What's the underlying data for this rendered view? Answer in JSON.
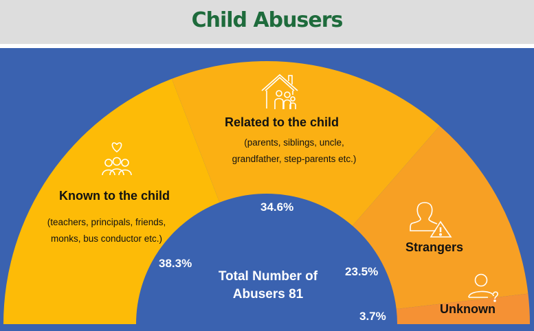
{
  "header": {
    "title": "Child Abusers"
  },
  "chart_data": {
    "type": "pie",
    "style": "half-donut",
    "categories": [
      "Known to the child",
      "Related to the child",
      "Strangers",
      "Unknown"
    ],
    "values": [
      38.3,
      34.6,
      23.5,
      3.7
    ],
    "labels": [
      "38.3%",
      "34.6%",
      "23.5%",
      "3.7%"
    ],
    "descriptions": [
      "(teachers, principals, friends, monks, bus conductor etc.)",
      "(parents, siblings, uncle, grandfather, step-parents etc.)",
      "",
      ""
    ],
    "colors": [
      "#fdbb07",
      "#fbb013",
      "#f7a024",
      "#f59134"
    ],
    "icons": [
      "heart-people-icon",
      "house-family-icon",
      "person-warning-icon",
      "person-question-icon"
    ],
    "center_text": [
      "Total Number of",
      "Abusers 81"
    ],
    "background": "#3a62b0"
  }
}
